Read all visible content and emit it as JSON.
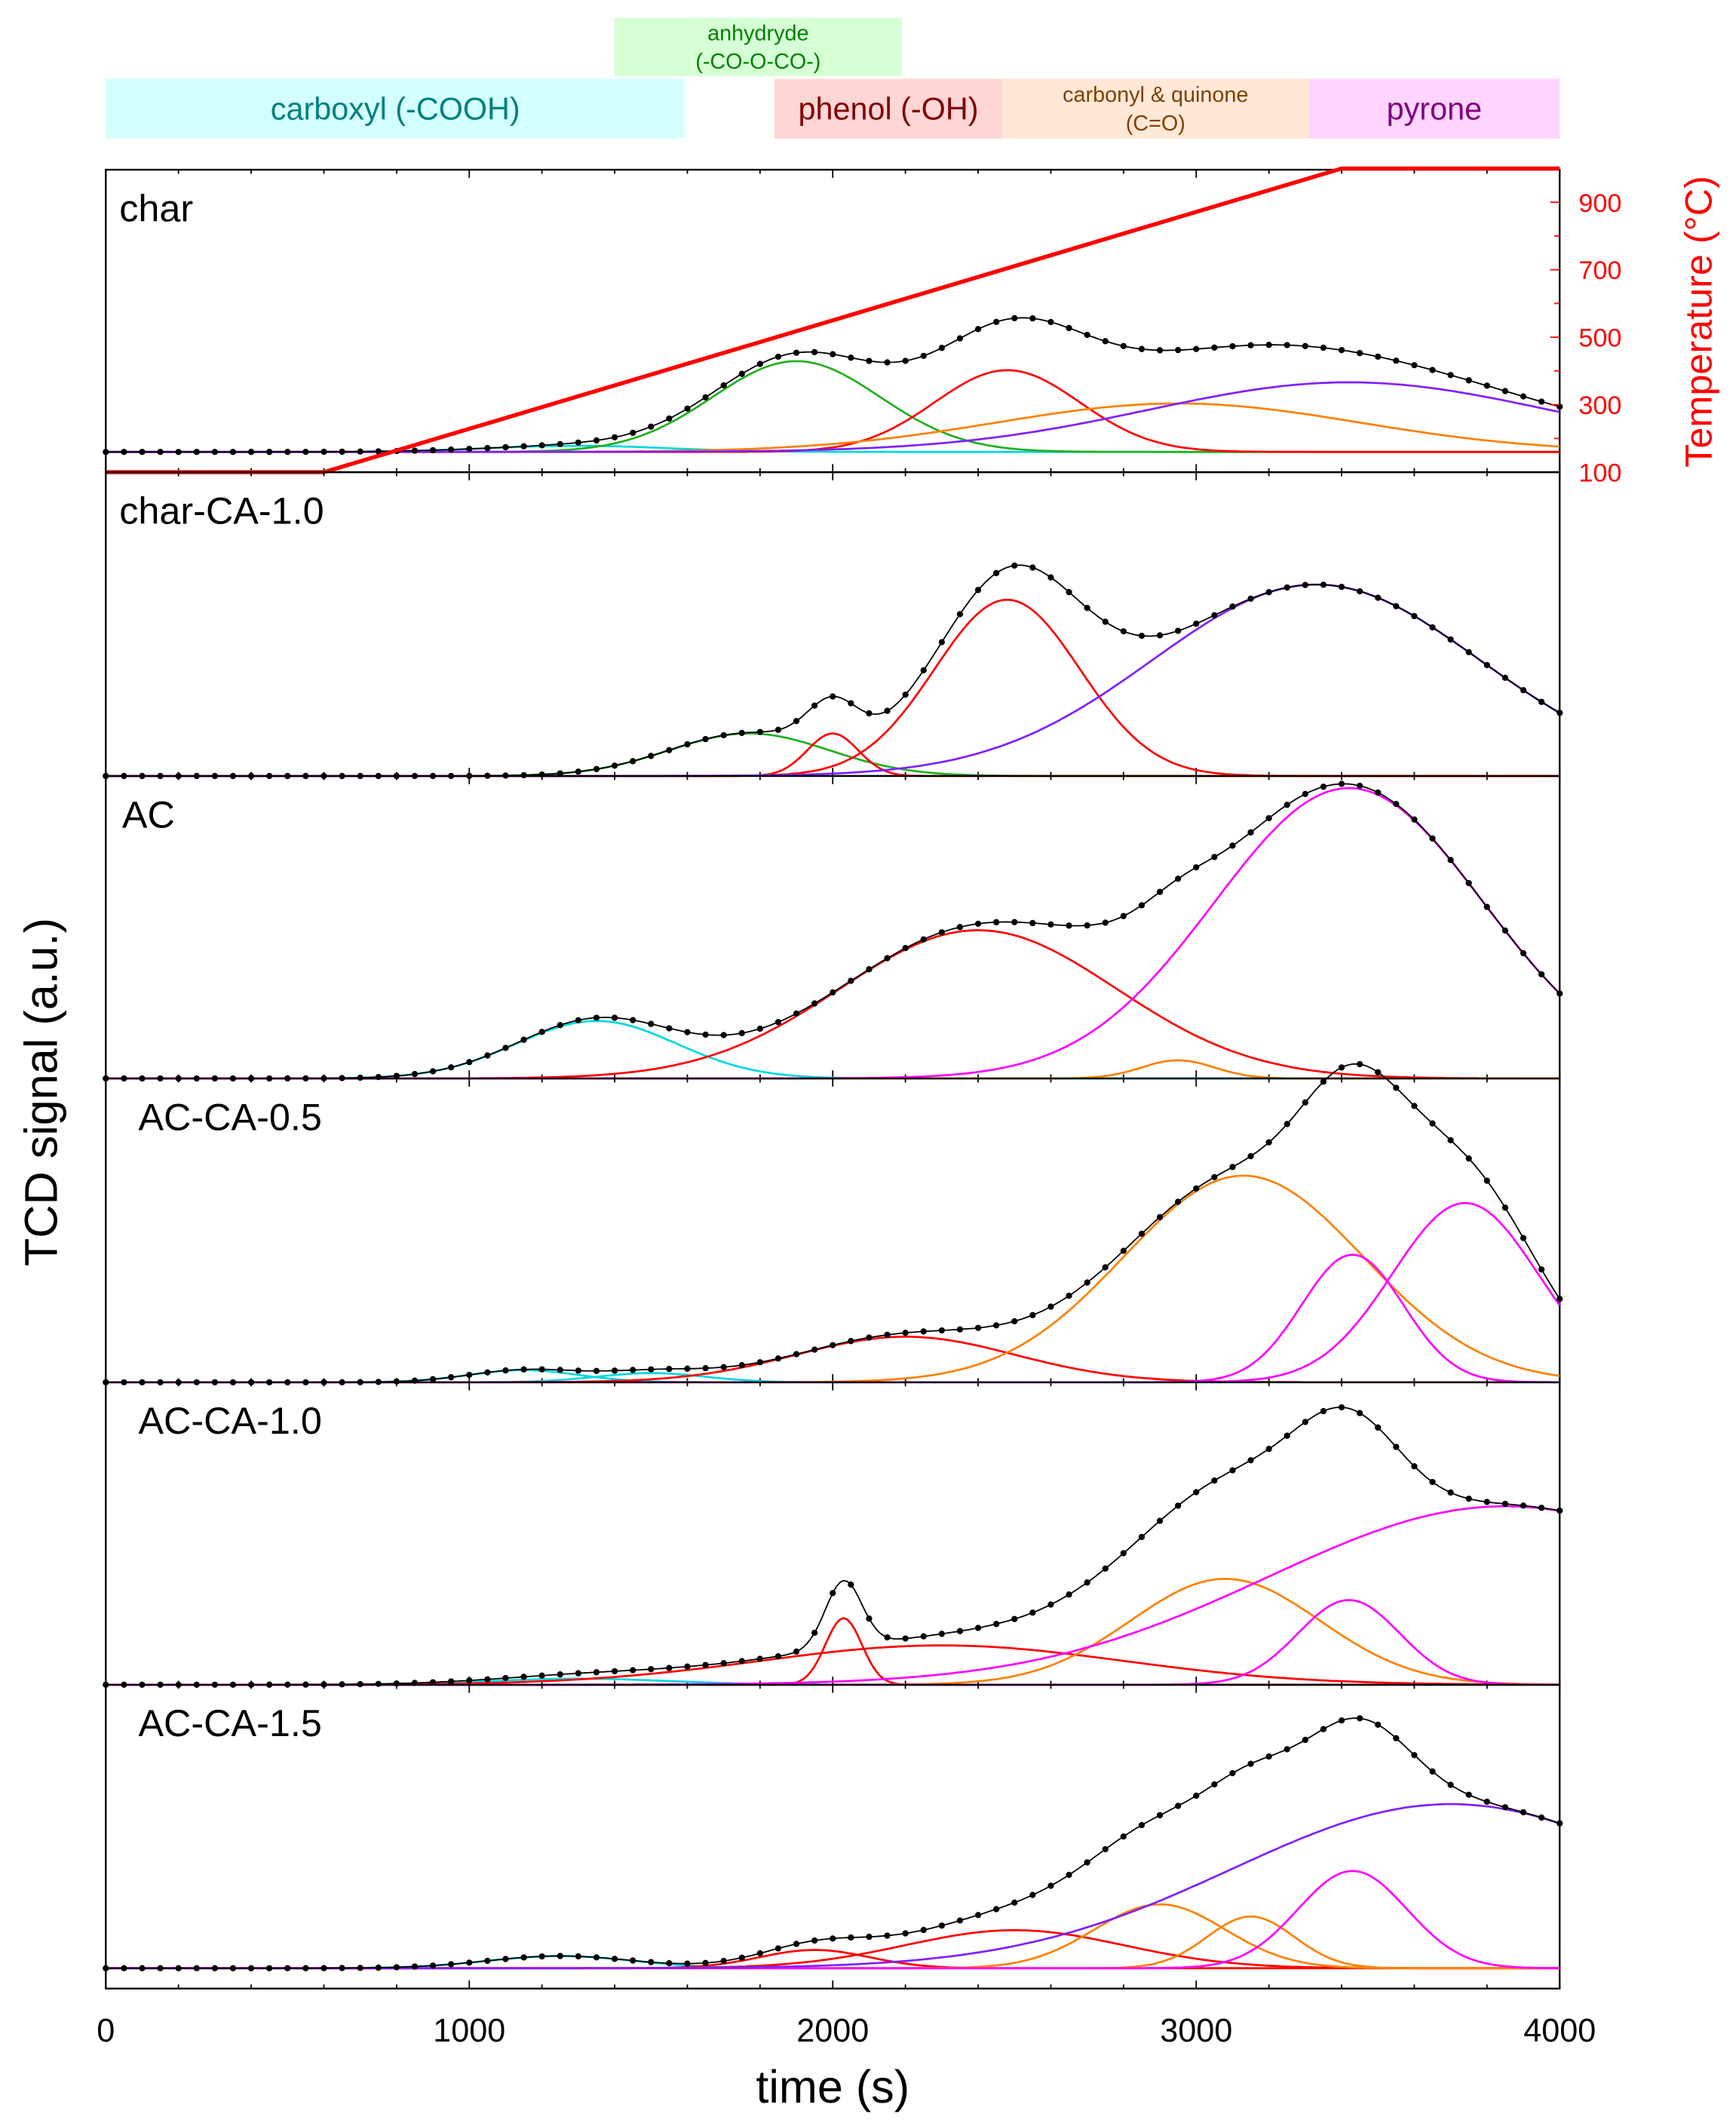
{
  "chart_data": {
    "type": "line",
    "title": "",
    "xlabel": "time (s)",
    "ylabel": "TCD signal (a.u.)",
    "y2label": "Temperature (°C)",
    "xlim": [
      0,
      4000
    ],
    "xticks": [
      "0",
      "1000",
      "2000",
      "3000",
      "4000"
    ],
    "y2lim": [
      100,
      1000
    ],
    "y2ticks": [
      "100",
      "300",
      "500",
      "700",
      "900"
    ],
    "legend_regions": [
      {
        "label": "anhydryde",
        "label2": "(-CO-O-CO-)",
        "fill": "#d6ffd6",
        "color": "#008000"
      },
      {
        "label": "carboxyl (-COOH)",
        "fill": "#d4ffff",
        "color": "#008080"
      },
      {
        "label": "phenol (-OH)",
        "fill": "#ffd6d6",
        "color": "#800000"
      },
      {
        "label": "carbonyl & quinone",
        "label2": "(C=O)",
        "fill": "#ffe8d6",
        "color": "#804000"
      },
      {
        "label": "pyrone",
        "fill": "#ffd4ff",
        "color": "#800080"
      }
    ],
    "component_colors": {
      "carboxyl": "#00d8e0",
      "anhydryde": "#20b020",
      "phenol": "#ff0000",
      "carbonyl": "#ff8000",
      "pyrone_purple": "#8020ff",
      "pyrone": "#ff00ff"
    },
    "temperature_program": {
      "start_s": 600,
      "end_s": 3400,
      "t0": 100,
      "t1": 1000,
      "color": "#ff0000"
    },
    "panels": [
      {
        "label": "char",
        "baseline": 0.067,
        "peaks": [
          {
            "type": "carboxyl",
            "center": 1300,
            "height": 0.02,
            "sigma": 250
          },
          {
            "type": "anhydryde",
            "center": 1900,
            "height": 0.3,
            "sigma": 230
          },
          {
            "type": "phenol",
            "center": 2480,
            "height": 0.27,
            "sigma": 200
          },
          {
            "type": "carbonyl",
            "center": 2950,
            "height": 0.16,
            "sigma": 500
          },
          {
            "type": "pyrone_purple",
            "center": 3420,
            "height": 0.23,
            "sigma": 550
          }
        ]
      },
      {
        "label": "char-CA-1.0",
        "baseline": 0,
        "peaks": [
          {
            "type": "anhydryde",
            "center": 1770,
            "height": 0.14,
            "sigma": 220
          },
          {
            "type": "phenol",
            "center": 2000,
            "height": 0.14,
            "sigma": 70
          },
          {
            "type": "phenol",
            "center": 2480,
            "height": 0.58,
            "sigma": 200
          },
          {
            "type": "pyrone_purple",
            "center": 3330,
            "height": 0.63,
            "sigma": 450
          }
        ]
      },
      {
        "label": "AC",
        "baseline": 0,
        "peaks": [
          {
            "type": "carboxyl",
            "center": 1350,
            "height": 0.19,
            "sigma": 220
          },
          {
            "type": "phenol",
            "center": 2400,
            "height": 0.49,
            "sigma": 380
          },
          {
            "type": "carbonyl",
            "center": 2950,
            "height": 0.06,
            "sigma": 100
          },
          {
            "type": "pyrone",
            "center": 3420,
            "height": 0.96,
            "sigma": 370
          }
        ]
      },
      {
        "label": "AC-CA-0.5",
        "baseline": 0,
        "peaks": [
          {
            "type": "carboxyl",
            "center": 1150,
            "height": 0.04,
            "sigma": 150
          },
          {
            "type": "carboxyl",
            "center": 1500,
            "height": 0.03,
            "sigma": 150
          },
          {
            "type": "phenol",
            "center": 2200,
            "height": 0.15,
            "sigma": 300
          },
          {
            "type": "carbonyl",
            "center": 3130,
            "height": 0.68,
            "sigma": 330
          },
          {
            "type": "pyrone",
            "center": 3430,
            "height": 0.42,
            "sigma": 140
          },
          {
            "type": "pyrone",
            "center": 3740,
            "height": 0.59,
            "sigma": 200
          }
        ]
      },
      {
        "label": "AC-CA-1.0",
        "baseline": 0,
        "peaks": [
          {
            "type": "carboxyl",
            "center": 1300,
            "height": 0.02,
            "sigma": 250
          },
          {
            "type": "phenol",
            "center": 2030,
            "height": 0.22,
            "sigma": 50
          },
          {
            "type": "phenol",
            "center": 2300,
            "height": 0.13,
            "sigma": 500
          },
          {
            "type": "carbonyl",
            "center": 3080,
            "height": 0.35,
            "sigma": 260
          },
          {
            "type": "pyrone",
            "center": 3420,
            "height": 0.28,
            "sigma": 140
          },
          {
            "type": "pyrone",
            "center": 3850,
            "height": 0.59,
            "sigma": 650
          }
        ]
      },
      {
        "label": "AC-CA-1.5",
        "baseline": 0.067,
        "peaks": [
          {
            "type": "carboxyl",
            "center": 1250,
            "height": 0.04,
            "sigma": 200
          },
          {
            "type": "phenol",
            "center": 1950,
            "height": 0.06,
            "sigma": 150
          },
          {
            "type": "phenol",
            "center": 2500,
            "height": 0.125,
            "sigma": 300
          },
          {
            "type": "carbonyl",
            "center": 2900,
            "height": 0.21,
            "sigma": 180
          },
          {
            "type": "carbonyl",
            "center": 3150,
            "height": 0.17,
            "sigma": 120
          },
          {
            "type": "pyrone",
            "center": 3430,
            "height": 0.32,
            "sigma": 150
          },
          {
            "type": "pyrone_purple",
            "center": 3700,
            "height": 0.54,
            "sigma": 600
          }
        ]
      }
    ]
  }
}
